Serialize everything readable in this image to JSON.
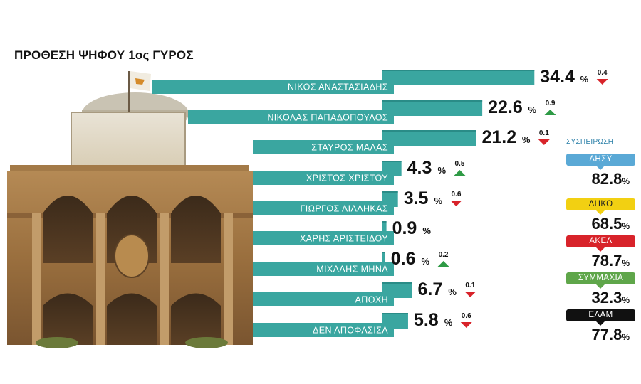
{
  "title": "ΠΡΟΘΕΣΗ ΨΗΦΟΥ 1ος ΓΥΡΟΣ",
  "colors": {
    "bar": "#3aa6a0",
    "bar_dark": "#2a8c87",
    "up": "#2e9a45",
    "down": "#d8232a"
  },
  "chart_data": {
    "type": "bar",
    "title": "ΠΡΟΘΕΣΗ ΨΗΦΟΥ 1ος ΓΥΡΟΣ",
    "categories": [
      "ΝΙΚΟΣ ΑΝΑΣΤΑΣΙΑΔΗΣ",
      "ΝΙΚΟΛΑΣ ΠΑΠΑΔΟΠΟΥΛΟΣ",
      "ΣΤΑΥΡΟΣ ΜΑΛΑΣ",
      "ΧΡΙΣΤΟΣ ΧΡΙΣΤΟΥ",
      "ΓΙΩΡΓΟΣ ΛΙΛΛΗΚΑΣ",
      "ΧΑΡΗΣ ΑΡΙΣΤΕΙΔΟΥ",
      "ΜΙΧΑΛΗΣ ΜΗΝΑ",
      "ΑΠΟΧΗ",
      "ΔΕΝ ΑΠΟΦΑΣΙΣΑ"
    ],
    "values": [
      34.4,
      22.6,
      21.2,
      4.3,
      3.5,
      0.9,
      0.6,
      6.7,
      5.8
    ],
    "value_labels": [
      "34.4",
      "22.6",
      "21.2",
      "4.3",
      "3.5",
      "0.9",
      "0.6",
      "6.7",
      "5.8"
    ],
    "unit": "%",
    "changes": [
      {
        "value": "0.4",
        "direction": "down"
      },
      {
        "value": "0.9",
        "direction": "up"
      },
      {
        "value": "0.1",
        "direction": "down"
      },
      {
        "value": "0.5",
        "direction": "up"
      },
      {
        "value": "0.6",
        "direction": "down"
      },
      null,
      {
        "value": "0.2",
        "direction": "up"
      },
      {
        "value": "0.1",
        "direction": "down"
      },
      {
        "value": "0.6",
        "direction": "down"
      }
    ]
  },
  "sidebar": {
    "title": "ΣΥΣΠΕΙΡΩΣΗ",
    "unit": "%",
    "parties": [
      {
        "name": "ΔΗΣΥ",
        "value": "82.8",
        "color": "#5aa9d6",
        "text_color": "#ffffff"
      },
      {
        "name": "ΔΗΚΟ",
        "value": "68.5",
        "color": "#f2d012",
        "text_color": "#222222"
      },
      {
        "name": "ΑΚΕΛ",
        "value": "78.7",
        "color": "#d8232a",
        "text_color": "#ffffff"
      },
      {
        "name": "ΣΥΜΜΑΧΙΑ",
        "value": "32.3",
        "color": "#5fa64a",
        "text_color": "#ffffff"
      },
      {
        "name": "ΕΛΑΜ",
        "value": "77.8",
        "color": "#111111",
        "text_color": "#ffffff"
      }
    ]
  }
}
